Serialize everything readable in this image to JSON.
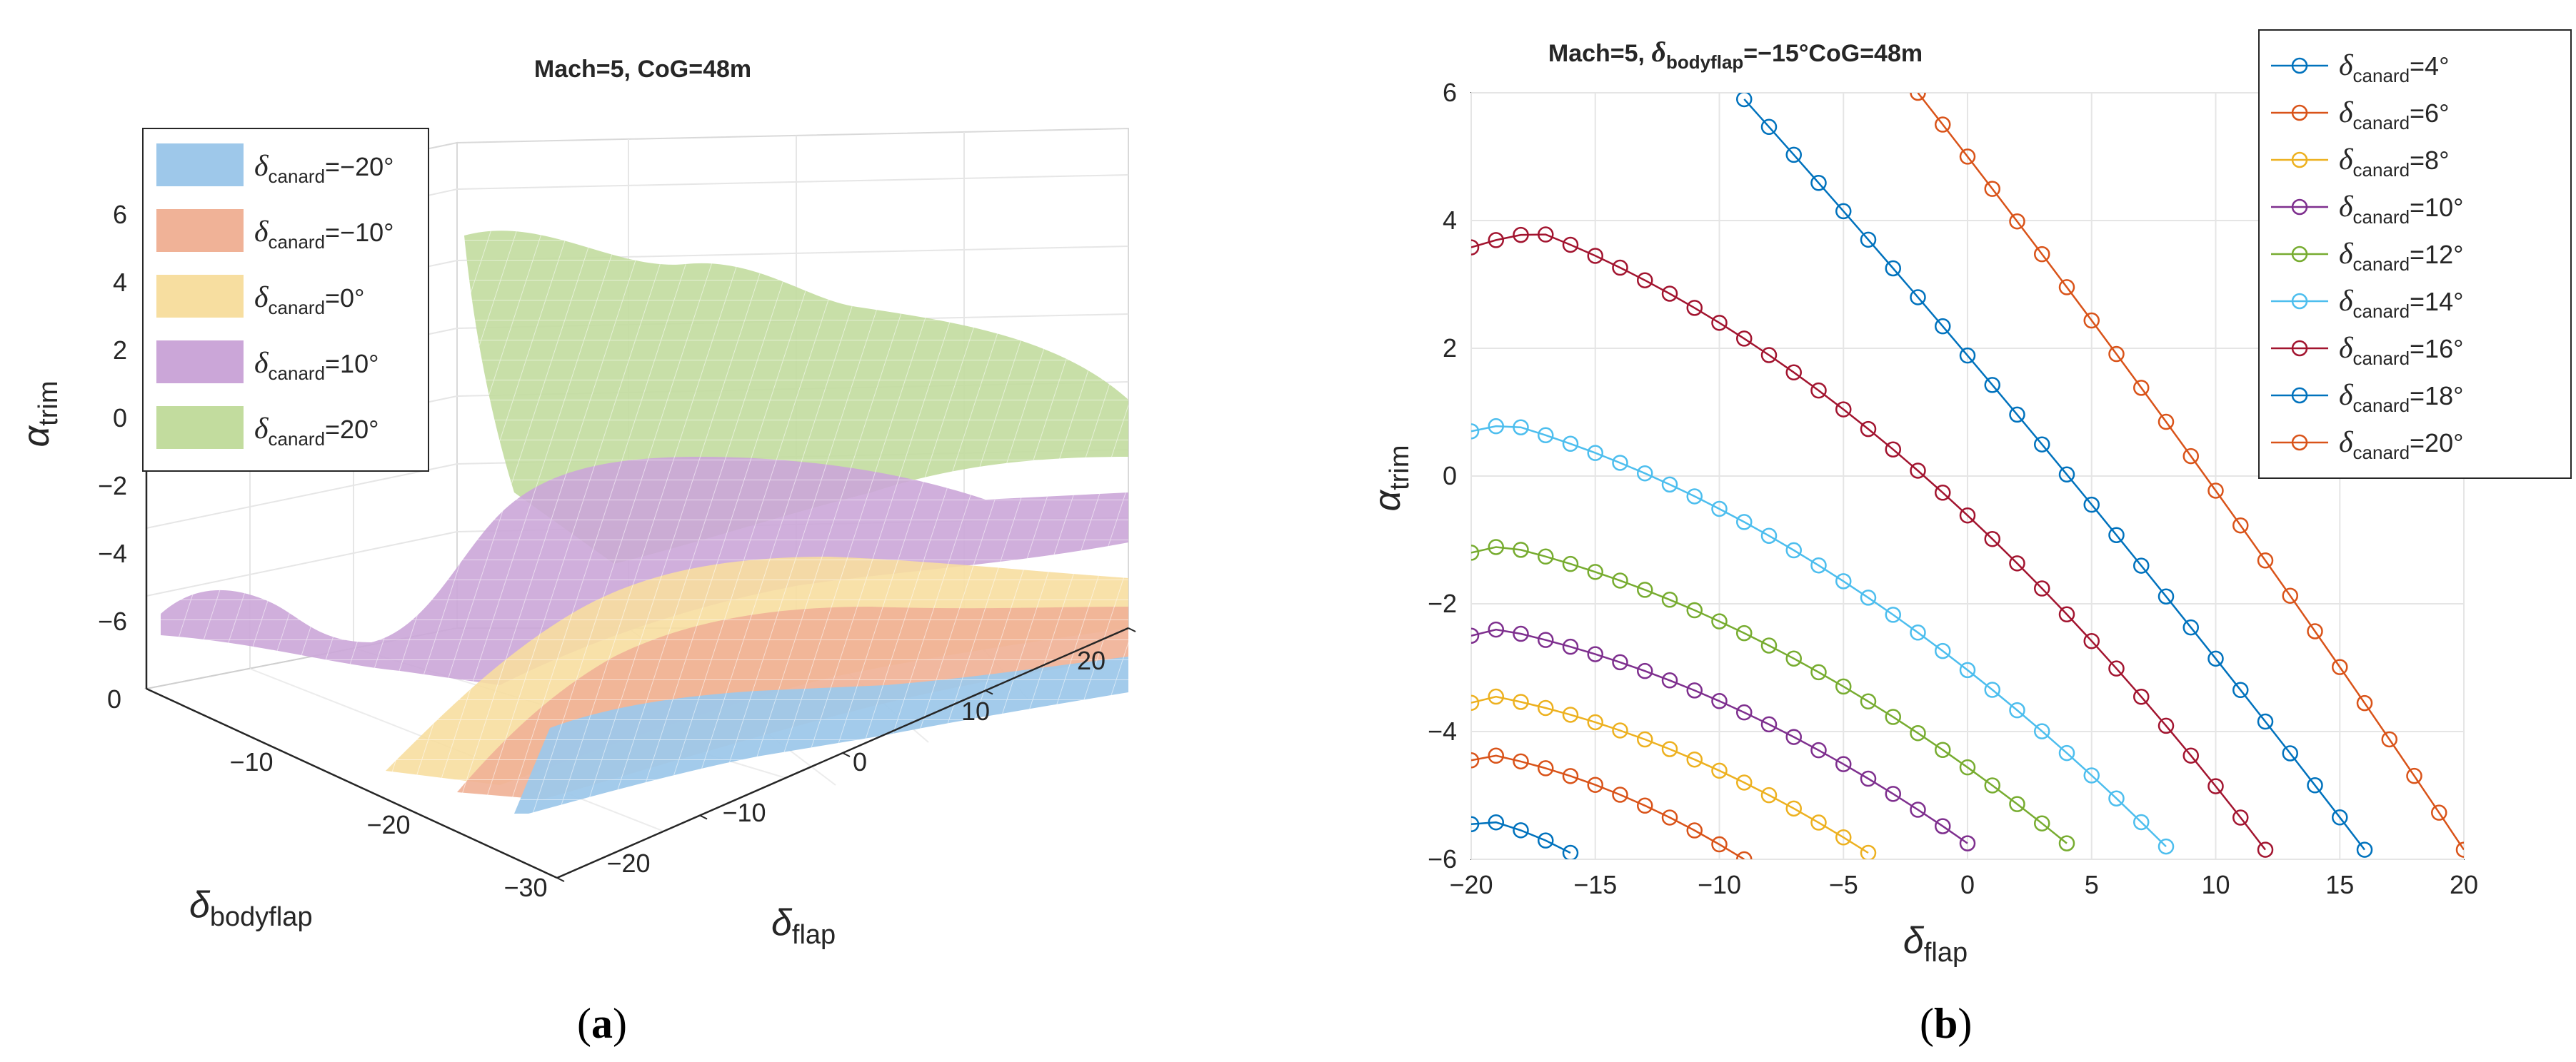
{
  "figure": {
    "panel_a_label": "a",
    "panel_b_label": "b"
  },
  "chart_data": [
    {
      "type": "surface3d",
      "title": "Mach=5, CoG=48m",
      "zlabel": {
        "base": "α",
        "sub": "trim"
      },
      "xlabel": {
        "base": "δ",
        "sub": "flap"
      },
      "ylabel": {
        "base": "δ",
        "sub": "bodyflap"
      },
      "zticks": [
        "6",
        "4",
        "2",
        "0",
        "−2",
        "−4",
        "−6"
      ],
      "flap_ticks": [
        "−20",
        "−10",
        "0",
        "10",
        "20"
      ],
      "bodyflap_ticks": [
        "0",
        "−10",
        "−20",
        "−30"
      ],
      "legend_location": "top-left",
      "series": [
        {
          "name": "δcanard=−20°",
          "sym": "δ",
          "sub": "canard",
          "value": "=−20°",
          "color": "#9ec8ea"
        },
        {
          "name": "δcanard=−10°",
          "sym": "δ",
          "sub": "canard",
          "value": "=−10°",
          "color": "#f0b297"
        },
        {
          "name": "δcanard=0°",
          "sym": "δ",
          "sub": "canard",
          "value": "=0°",
          "color": "#f7dea0"
        },
        {
          "name": "δcanard=10°",
          "sym": "δ",
          "sub": "canard",
          "value": "=10°",
          "color": "#cba6d8"
        },
        {
          "name": "δcanard=20°",
          "sym": "δ",
          "sub": "canard",
          "value": "=20°",
          "color": "#c2dc9e"
        }
      ]
    },
    {
      "type": "line",
      "title_prefix": "Mach=5, ",
      "title_sym": "δ",
      "title_sub": "bodyflap",
      "title_suffix": "=−15°CoG=48m",
      "xlabel": {
        "base": "δ",
        "sub": "flap"
      },
      "ylabel": {
        "base": "α",
        "sub": "trim"
      },
      "xlim": [
        -20,
        20
      ],
      "ylim": [
        -6,
        6
      ],
      "xticks": [
        -20,
        -15,
        -10,
        -5,
        0,
        5,
        10,
        15,
        20
      ],
      "yticks": [
        -6,
        -4,
        -2,
        0,
        2,
        4,
        6
      ],
      "legend_location": "top-right",
      "series": [
        {
          "name": "δcanard=4°",
          "sym": "δ",
          "sub": "canard",
          "value": "=4°",
          "color": "#0072bd",
          "x": [
            -20,
            -16
          ],
          "y": [
            -5.45,
            -5.9
          ]
        },
        {
          "name": "δcanard=6°",
          "sym": "δ",
          "sub": "canard",
          "value": "=6°",
          "color": "#d95319",
          "x": [
            -20,
            -9
          ],
          "y": [
            -4.45,
            -6.0
          ]
        },
        {
          "name": "δcanard=8°",
          "sym": "δ",
          "sub": "canard",
          "value": "=8°",
          "color": "#edb120",
          "x": [
            -20,
            -4
          ],
          "y": [
            -3.55,
            -5.9
          ]
        },
        {
          "name": "δcanard=10°",
          "sym": "δ",
          "sub": "canard",
          "value": "=10°",
          "color": "#7e2f8e",
          "x": [
            -20,
            0
          ],
          "y": [
            -2.5,
            -5.75
          ]
        },
        {
          "name": "δcanard=12°",
          "sym": "δ",
          "sub": "canard",
          "value": "=12°",
          "color": "#77ac30",
          "x": [
            -20,
            4
          ],
          "y": [
            -1.2,
            -5.75
          ]
        },
        {
          "name": "δcanard=14°",
          "sym": "δ",
          "sub": "canard",
          "value": "=14°",
          "color": "#4dbeee",
          "x": [
            -20,
            8
          ],
          "y": [
            0.7,
            -5.8
          ]
        },
        {
          "name": "δcanard=16°",
          "sym": "δ",
          "sub": "canard",
          "value": "=16°",
          "color": "#a2142f",
          "x": [
            -20,
            12
          ],
          "y": [
            3.58,
            -5.85
          ]
        },
        {
          "name": "δcanard=18°",
          "sym": "δ",
          "sub": "canard",
          "value": "=18°",
          "color": "#0072bd",
          "x": [
            -9,
            16
          ],
          "y": [
            5.9,
            -5.85
          ]
        },
        {
          "name": "δcanard=20°",
          "sym": "δ",
          "sub": "canard",
          "value": "=20°",
          "color": "#d95319",
          "x": [
            -2,
            20
          ],
          "y": [
            6.0,
            -5.85
          ]
        }
      ]
    }
  ]
}
